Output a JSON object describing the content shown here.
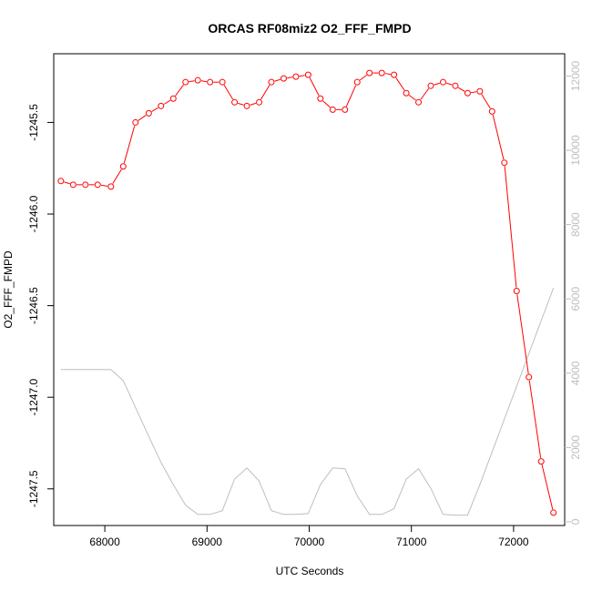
{
  "chart_data": {
    "type": "line",
    "title": "ORCAS RF08miz2 O2_FFF_FMPD",
    "xlabel": "UTC Seconds",
    "ylabel": "O2_FFF_FMPD",
    "xlim": [
      67500,
      72500
    ],
    "ylim": [
      -1247.7,
      -1245.125
    ],
    "y2lim": [
      -100,
      12600
    ],
    "x_ticks": [
      "68000",
      "69000",
      "70000",
      "71000",
      "72000"
    ],
    "y_ticks": [
      "-1245.5",
      "-1246.0",
      "-1246.5",
      "-1247.0",
      "-1247.5"
    ],
    "y2_ticks": [
      "0",
      "2000",
      "4000",
      "6000",
      "8000",
      "10000",
      "12000"
    ],
    "colors": {
      "primary": "#ff0000",
      "secondary": "#bebebe",
      "axis": "#000000"
    },
    "series": [
      {
        "axis": "left",
        "style": "line-with-open-circles",
        "color": "#ff0000",
        "x": [
          67570,
          67690,
          67810,
          67930,
          68060,
          68180,
          68300,
          68430,
          68550,
          68670,
          68790,
          68910,
          69030,
          69150,
          69270,
          69390,
          69510,
          69630,
          69750,
          69870,
          69990,
          70110,
          70230,
          70350,
          70470,
          70590,
          70710,
          70830,
          70950,
          71070,
          71190,
          71310,
          71430,
          71550,
          71670,
          71790,
          71910,
          72030,
          72150,
          72270,
          72390
        ],
        "y": [
          -1245.82,
          -1245.84,
          -1245.84,
          -1245.84,
          -1245.85,
          -1245.74,
          -1245.5,
          -1245.45,
          -1245.41,
          -1245.37,
          -1245.28,
          -1245.27,
          -1245.28,
          -1245.28,
          -1245.39,
          -1245.41,
          -1245.39,
          -1245.28,
          -1245.26,
          -1245.25,
          -1245.24,
          -1245.37,
          -1245.43,
          -1245.43,
          -1245.28,
          -1245.23,
          -1245.23,
          -1245.24,
          -1245.34,
          -1245.39,
          -1245.3,
          -1245.28,
          -1245.3,
          -1245.34,
          -1245.33,
          -1245.44,
          -1245.72,
          -1246.42,
          -1246.89,
          -1247.35,
          -1247.63
        ]
      },
      {
        "axis": "right",
        "style": "line",
        "color": "#bebebe",
        "x": [
          67570,
          68060,
          68180,
          68430,
          68550,
          68670,
          68790,
          68910,
          69030,
          69150,
          69270,
          69390,
          69510,
          69630,
          69750,
          69870,
          69990,
          70110,
          70230,
          70350,
          70470,
          70590,
          70710,
          70830,
          70950,
          71070,
          71190,
          71310,
          71430,
          71550,
          71670,
          72390
        ],
        "y": [
          4100,
          4100,
          3800,
          2300,
          1600,
          1000,
          450,
          200,
          200,
          300,
          1150,
          1450,
          1100,
          300,
          200,
          200,
          220,
          1000,
          1450,
          1430,
          700,
          200,
          200,
          350,
          1150,
          1430,
          900,
          200,
          180,
          180,
          1000,
          6300
        ]
      }
    ]
  }
}
